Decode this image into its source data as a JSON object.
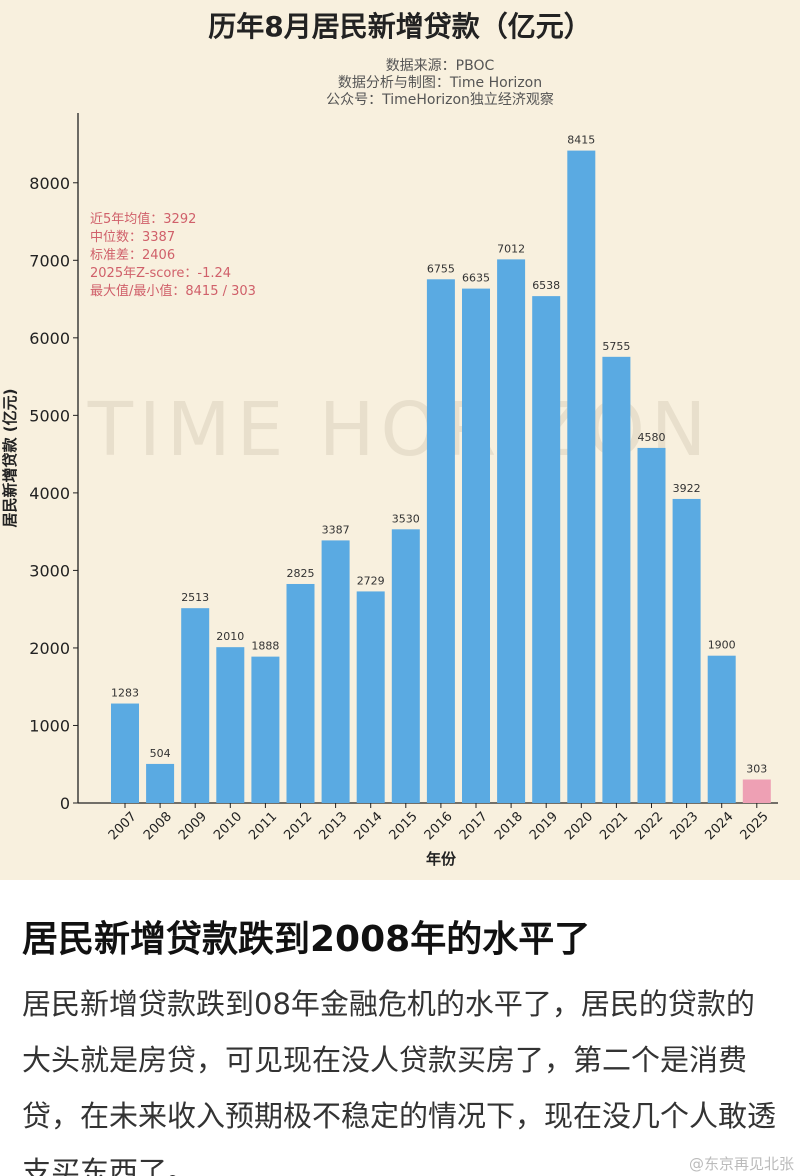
{
  "chart_data": {
    "type": "bar",
    "title": "历年8月居民新增贷款（亿元）",
    "source_lines": [
      "数据来源：PBOC",
      "数据分析与制图：Time Horizon",
      "公众号：TimeHorizon独立经济观察"
    ],
    "xlabel": "年份",
    "ylabel": "居民新增贷款 (亿元)",
    "categories": [
      "2007",
      "2008",
      "2009",
      "2010",
      "2011",
      "2012",
      "2013",
      "2014",
      "2015",
      "2016",
      "2017",
      "2018",
      "2019",
      "2020",
      "2021",
      "2022",
      "2023",
      "2024",
      "2025"
    ],
    "values": [
      1283,
      504,
      2513,
      2010,
      1888,
      2825,
      3387,
      2729,
      3530,
      6755,
      6635,
      7012,
      6538,
      8415,
      5755,
      4580,
      3922,
      1900,
      303
    ],
    "highlight_index": 18,
    "yticks": [
      0,
      1000,
      2000,
      3000,
      4000,
      5000,
      6000,
      7000,
      8000
    ],
    "ylim": [
      0,
      8900
    ],
    "grid": false,
    "stats": [
      "近5年均值：3292",
      "中位数：3387",
      "标准差：2406",
      "2025年Z-score：-1.24",
      "最大值/最小值：8415 / 303"
    ],
    "watermark": "TIME HORIZON",
    "colors": {
      "bar": "#5aaae2",
      "highlight": "#eea0b4",
      "background": "#f8f0de",
      "stats_text": "#d0606a"
    }
  },
  "post": {
    "headline": "居民新增贷款跌到2008年的水平了",
    "body": "居民新增贷款跌到08年金融危机的水平了，居民的贷款的大头就是房贷，可见现在没人贷款买房了，第二个是消费贷，在未来收入预期极不稳定的情况下，现在没几个人敢透支买东西了。",
    "footer_watermark": "@东京再见北张"
  }
}
